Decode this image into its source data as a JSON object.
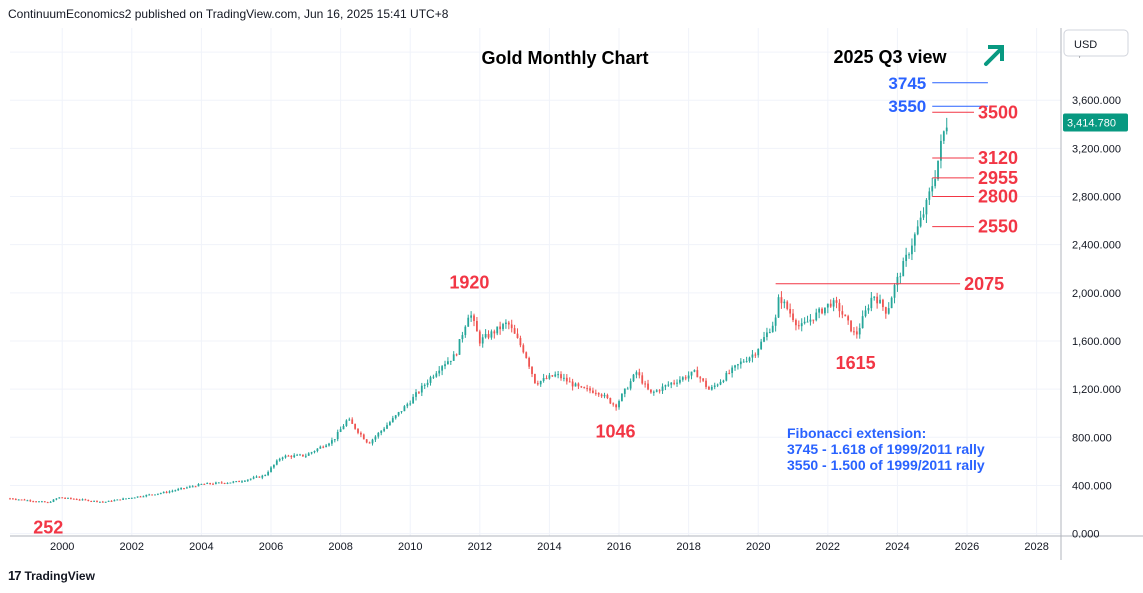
{
  "header": {
    "publisher_line": "ContinuumEconomics2 published on TradingView.com, Jun 16, 2025 15:41 UTC+8"
  },
  "footer": {
    "brand": "TradingView",
    "brand_mark": "17"
  },
  "colors": {
    "up": "#26a69a",
    "down": "#ef5350",
    "level": "#f23645",
    "fib": "#2962ff",
    "arrow": "#089981",
    "grid": "#f0f3fa",
    "axis_text": "#131722"
  },
  "fib_note": {
    "lines": [
      "Fibonacci extension:",
      "3745 - 1.618 of 1999/2011 rally",
      "3550 - 1.500 of 1999/2011 rally"
    ]
  },
  "chart_data": {
    "type": "candlestick",
    "title": "Gold Monthly Chart",
    "subtitle": "2025 Q3 view",
    "currency": "USD",
    "last_price": "3,414.780",
    "xlim": [
      1998.5,
      2028.7
    ],
    "ylim": [
      -20,
      4200
    ],
    "x_ticks": [
      2000,
      2002,
      2004,
      2006,
      2008,
      2010,
      2012,
      2014,
      2016,
      2018,
      2020,
      2022,
      2024,
      2026,
      2028
    ],
    "y_ticks": [
      0,
      400,
      800,
      1200,
      1600,
      2000,
      2400,
      2800,
      3200,
      3600,
      4000
    ],
    "y_tick_labels": [
      "0.000",
      "400.000",
      "800.000",
      "1,200.000",
      "1,600.000",
      "2,000.000",
      "2,400.000",
      "2,800.000",
      "3,200.000",
      "3,600.000",
      "4,000.000"
    ],
    "price_path": [
      [
        1998.5,
        292
      ],
      [
        1999.6,
        258
      ],
      [
        1999.9,
        300
      ],
      [
        2001.2,
        262
      ],
      [
        2002.0,
        300
      ],
      [
        2003.0,
        345
      ],
      [
        2004.0,
        410
      ],
      [
        2005.0,
        430
      ],
      [
        2005.8,
        480
      ],
      [
        2006.3,
        640
      ],
      [
        2007.0,
        650
      ],
      [
        2007.8,
        780
      ],
      [
        2008.2,
        950
      ],
      [
        2008.8,
        750
      ],
      [
        2009.5,
        950
      ],
      [
        2010.0,
        1100
      ],
      [
        2010.9,
        1400
      ],
      [
        2011.3,
        1480
      ],
      [
        2011.7,
        1850
      ],
      [
        2012.0,
        1600
      ],
      [
        2012.8,
        1750
      ],
      [
        2013.3,
        1500
      ],
      [
        2013.6,
        1250
      ],
      [
        2014.2,
        1320
      ],
      [
        2014.9,
        1200
      ],
      [
        2015.4,
        1180
      ],
      [
        2015.9,
        1060
      ],
      [
        2016.5,
        1340
      ],
      [
        2016.9,
        1160
      ],
      [
        2017.5,
        1250
      ],
      [
        2018.2,
        1340
      ],
      [
        2018.6,
        1190
      ],
      [
        2019.5,
        1420
      ],
      [
        2019.9,
        1500
      ],
      [
        2020.5,
        1780
      ],
      [
        2020.6,
        1970
      ],
      [
        2021.2,
        1710
      ],
      [
        2022.1,
        1920
      ],
      [
        2022.3,
        1880
      ],
      [
        2022.8,
        1640
      ],
      [
        2023.3,
        1990
      ],
      [
        2023.7,
        1840
      ],
      [
        2023.9,
        2040
      ],
      [
        2024.2,
        2250
      ],
      [
        2024.8,
        2700
      ],
      [
        2025.1,
        3000
      ],
      [
        2025.3,
        3300
      ],
      [
        2025.42,
        3414
      ]
    ],
    "horizontal_levels": [
      {
        "value": 3745,
        "label": "3745",
        "type": "fib",
        "x_from": 2025.0,
        "x_to": 2026.6
      },
      {
        "value": 3550,
        "label": "3550",
        "type": "fib",
        "x_from": 2025.0,
        "x_to": 2026.6
      },
      {
        "value": 3500,
        "label": "3500",
        "type": "level",
        "x_from": 2025.0,
        "x_to": 2026.2
      },
      {
        "value": 3120,
        "label": "3120",
        "type": "level",
        "x_from": 2025.0,
        "x_to": 2026.2
      },
      {
        "value": 2955,
        "label": "2955",
        "type": "level",
        "x_from": 2025.0,
        "x_to": 2026.2
      },
      {
        "value": 2800,
        "label": "2800",
        "type": "level",
        "x_from": 2025.0,
        "x_to": 2026.2
      },
      {
        "value": 2550,
        "label": "2550",
        "type": "level",
        "x_from": 2025.0,
        "x_to": 2026.2
      },
      {
        "value": 2075,
        "label": "2075",
        "type": "level",
        "x_from": 2020.5,
        "x_to": 2025.8
      }
    ],
    "annotations": [
      {
        "label": "252",
        "x": 1999.6,
        "y": 252
      },
      {
        "label": "1920",
        "x": 2011.7,
        "y": 1920
      },
      {
        "label": "1046",
        "x": 2015.9,
        "y": 1046
      },
      {
        "label": "1615",
        "x": 2022.8,
        "y": 1615
      }
    ],
    "arrow": "up"
  }
}
